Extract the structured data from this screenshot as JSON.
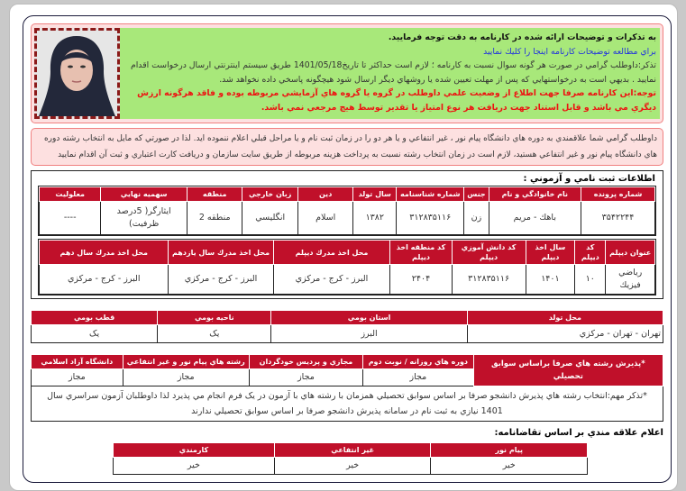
{
  "notice": {
    "line1": "به تذكرات و توضيحات ارائه شده در كارنامه به دقت توجه فرماييد.",
    "link": "براي مطالعه توضيحات كارنامه اينجا را كليك نماييد",
    "line3": "تذكر:داوطلب گرامي در صورت هر گونه سوال نسبت به كارنامه ؛ لازم است حداكثر تا تاريخ1401/05/18 طريق سيستم اينترنتي ارسال درخواست اقدام نماييد . بديهي است به درخواستهايي كه پس از مهلت تعيين شده يا روشهاي ديگر ارسال شود هيچگونه پاسخي داده نخواهد شد.",
    "warning": "توجه:اين كارنامه صرفا جهت اطلاع از وضعيت علمي داوطلب در گروه يا گروه هاي آزمايشي مربوطه بوده و فاقد هرگونه ارزش ديگري مي باشد و قابل استناد جهت دريافت هر نوع امتياز يا تقدير توسط هيچ مرجعي نمي باشد."
  },
  "payam_notice": "داوطلب گرامي شما علاقمندي به دوره هاي دانشگاه پيام نور ، غير انتفاعي و يا هر دو را در زمان ثبت نام و يا مراحل قبلي اعلام ننموده ايد. لذا در صورتي كه مايل به انتخاب رشته دوره هاي دانشگاه پيام نور و غير انتفاعي هستيد، لازم است در زمان انتخاب رشته نسبت به پرداخت هزينه مربوطه از طريق سايت سازمان و دريافت كارت اعتباري و ثبت آن اقدام نماييد",
  "registration": {
    "title": "اطلاعات ثبت نامي و آزموني :",
    "table1": {
      "headers": [
        "شماره پرونده",
        "نام خانوادگي و نام",
        "جنس",
        "شماره شناسنامه",
        "سال تولد",
        "دين",
        "زبان خارجي",
        "منطقه",
        "سهميه نهايي",
        "معلوليت"
      ],
      "values": [
        "۳۵۴۲۲۴۴",
        "باهك - مريم",
        "زن",
        "۳۱۲۸۳۵۱۱۶",
        "۱۳۸۲",
        "اسلام",
        "انگليسي",
        "منطقه 2",
        "ايثارگر( 5درصد ظرفيت)",
        "----"
      ]
    },
    "table2": {
      "headers": [
        "عنوان ديپلم",
        "كد ديپلم",
        "سال اخذ ديپلم",
        "كد دانش آموزي ديپلم",
        "كد منطقه اخذ ديپلم",
        "محل اخذ مدرك ديپلم",
        "محل اخذ مدرك سال يازدهم",
        "محل اخذ مدرك سال دهم"
      ],
      "values": [
        "رياضي فيزيك",
        "۱۰",
        "۱۴۰۱",
        "۳۱۲۸۳۵۱۱۶",
        "۲۴۰۴",
        "البرز - كرج - مركزي",
        "البرز - كرج - مركزي",
        "البرز - كرج - مركزي"
      ]
    }
  },
  "table3": {
    "headers": [
      "محل تولد",
      "استان بومي",
      "ناحيه بومي",
      "قطب بومي"
    ],
    "values": [
      "تهران - تهران - مركزي",
      "البرز",
      "يک",
      "يک"
    ]
  },
  "table4": {
    "row_header": "*پذيرش رشته هاي صرفا براساس سوابق تحصيلي",
    "headers": [
      "دوره هاي روزانه / نوبت دوم",
      "مجازي و پرديس خودگردان",
      "رشته هاي پيام نور و غير انتفاعي",
      "دانشگاه آزاد اسلامي"
    ],
    "values": [
      "مجاز",
      "مجاز",
      "مجاز",
      "مجاز"
    ],
    "note": "*تذكر مهم:انتخاب رشته هاي پذيرش دانشجو صرفا بر اساس سوابق تحصيلي همزمان با رشته هاي با آزمون در يک فرم انجام مي پذيرد لذا داوطلبان آزمون سراسري سال 1401 نيازي به ثبت نام در سامانه پذيرش دانشجو صرفا بر اساس سوابق تحصيلي ندارند"
  },
  "interest": {
    "title": "اعلام علاقه مندي بر اساس تقاضانامه:",
    "headers": [
      "پيام نور",
      "غير انتفاعي",
      "كارمندي"
    ],
    "values": [
      "خير",
      "خير",
      "خير"
    ]
  },
  "colors": {
    "header_red": "#c0102a",
    "notice_green": "#a8e87a",
    "alert_pink": "#fde0e0",
    "link_blue": "#2233dd",
    "warning_red": "#ee1111"
  }
}
